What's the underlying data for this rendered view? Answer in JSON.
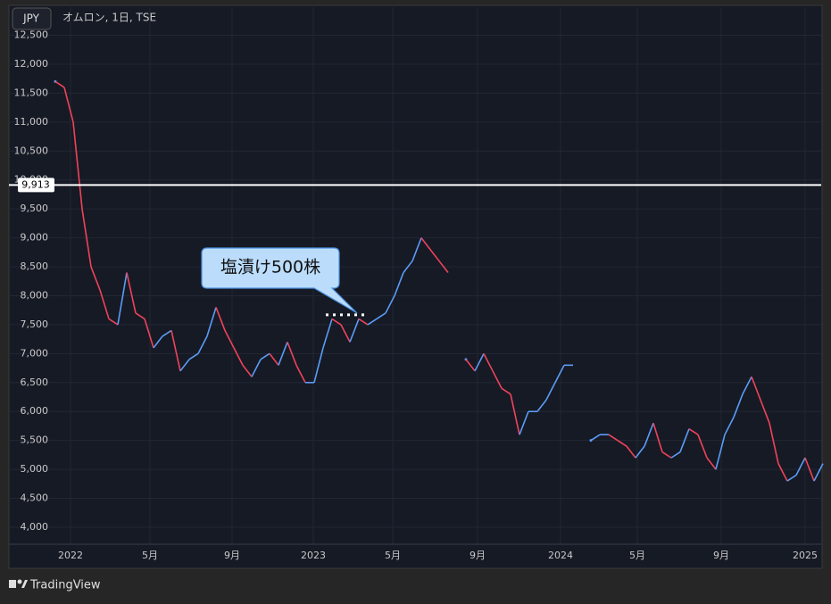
{
  "header": {
    "currency": "JPY",
    "symbol": "オムロン, 1日, TSE"
  },
  "footer": {
    "brand": "TradingView"
  },
  "chart_data": {
    "type": "line",
    "up_color": "#5b9cf6",
    "down_color": "#f0435a",
    "values": [
      11700,
      11600,
      11000,
      9500,
      8500,
      8100,
      7600,
      7500,
      8400,
      7700,
      7600,
      7100,
      7300,
      7400,
      6700,
      6900,
      7000,
      7300,
      7800,
      7400,
      7100,
      6800,
      6600,
      6900,
      7000,
      6800,
      7200,
      6800,
      6500,
      6500,
      7100,
      7600,
      7500,
      7200,
      7600,
      7500,
      7600,
      7700,
      8000,
      8400,
      8600,
      9000,
      8800,
      8600,
      8400,
      null,
      6900,
      6700,
      7000,
      6700,
      6400,
      6300,
      5600,
      6000,
      6000,
      6200,
      6500,
      6800,
      6800,
      null,
      5500,
      5600,
      5600,
      5500,
      5400,
      5200,
      5400,
      5800,
      5300,
      5200,
      5300,
      5700,
      5600,
      5200,
      5000,
      5600,
      5900,
      6300,
      6600,
      6200,
      5800,
      5100,
      4800,
      4900,
      5200,
      4800,
      5100
    ],
    "xlim": [
      -5.2,
      85.8
    ],
    "xticks": [
      {
        "value": 1.7,
        "label": "2022"
      },
      {
        "value": 10.6,
        "label": "5月"
      },
      {
        "value": 19.8,
        "label": "9月"
      },
      {
        "value": 28.9,
        "label": "2023"
      },
      {
        "value": 37.8,
        "label": "5月"
      },
      {
        "value": 47.3,
        "label": "9月"
      },
      {
        "value": 56.6,
        "label": "2024"
      },
      {
        "value": 65.2,
        "label": "5月"
      },
      {
        "value": 74.6,
        "label": "9月"
      },
      {
        "value": 84,
        "label": "2025"
      }
    ],
    "ylim": [
      3707,
      12986
    ],
    "yticks": [
      {
        "value": 4000,
        "label": "4,000"
      },
      {
        "value": 4500,
        "label": "4,500"
      },
      {
        "value": 5000,
        "label": "5,000"
      },
      {
        "value": 5500,
        "label": "5,500"
      },
      {
        "value": 6000,
        "label": "6,000"
      },
      {
        "value": 6500,
        "label": "6,500"
      },
      {
        "value": 7000,
        "label": "7,000"
      },
      {
        "value": 7500,
        "label": "7,500"
      },
      {
        "value": 8000,
        "label": "8,000"
      },
      {
        "value": 8500,
        "label": "8,500"
      },
      {
        "value": 9000,
        "label": "9,000"
      },
      {
        "value": 9500,
        "label": "9,500"
      },
      {
        "value": 10000,
        "label": "10,000"
      },
      {
        "value": 10500,
        "label": "10,500"
      },
      {
        "value": 11000,
        "label": "11,000"
      },
      {
        "value": 11500,
        "label": "11,500"
      },
      {
        "value": 12000,
        "label": "12,000"
      },
      {
        "value": 12500,
        "label": "12,500"
      }
    ],
    "grid": true,
    "price_line": {
      "value": 9913,
      "label": "9,913"
    },
    "annotation": {
      "text": "塩漬け500株",
      "value": 7670,
      "x_from": 30.3,
      "x_to": 34.8
    }
  }
}
